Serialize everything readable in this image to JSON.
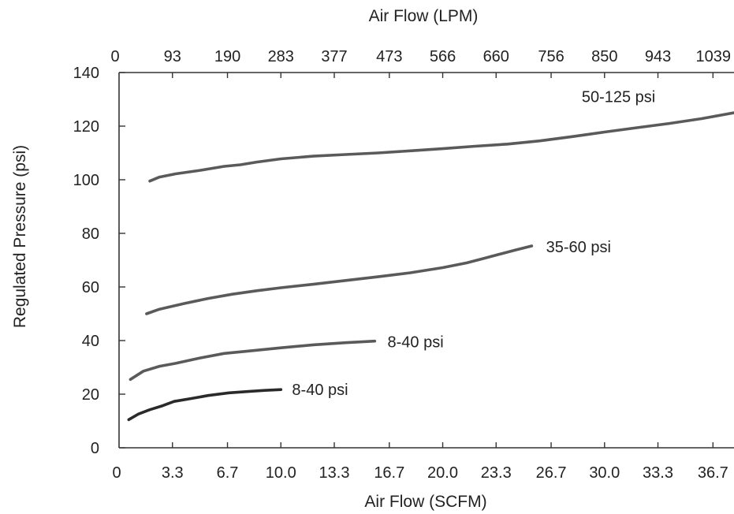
{
  "chart_data": {
    "type": "line",
    "title": "",
    "xlabel": "Air Flow (SCFM)",
    "x2label": "Air Flow (LPM)",
    "ylabel": "Regulated Pressure (psi)",
    "xlim": [
      0,
      38
    ],
    "ylim": [
      0,
      140
    ],
    "grid": false,
    "legend": "none",
    "bottom_ticks": [
      {
        "value": 0,
        "label": "0"
      },
      {
        "value": 3.3,
        "label": "3.3"
      },
      {
        "value": 6.7,
        "label": "6.7"
      },
      {
        "value": 10.0,
        "label": "10.0"
      },
      {
        "value": 13.3,
        "label": "13.3"
      },
      {
        "value": 16.7,
        "label": "16.7"
      },
      {
        "value": 20.0,
        "label": "20.0"
      },
      {
        "value": 23.3,
        "label": "23.3"
      },
      {
        "value": 26.7,
        "label": "26.7"
      },
      {
        "value": 30.0,
        "label": "30.0"
      },
      {
        "value": 33.3,
        "label": "33.3"
      },
      {
        "value": 36.7,
        "label": "36.7"
      }
    ],
    "top_ticks": [
      {
        "value": 0,
        "label": "0"
      },
      {
        "value": 3.3,
        "label": "93"
      },
      {
        "value": 6.7,
        "label": "190"
      },
      {
        "value": 10.0,
        "label": "283"
      },
      {
        "value": 13.3,
        "label": "377"
      },
      {
        "value": 16.7,
        "label": "473"
      },
      {
        "value": 20.0,
        "label": "566"
      },
      {
        "value": 23.3,
        "label": "660"
      },
      {
        "value": 26.7,
        "label": "756"
      },
      {
        "value": 30.0,
        "label": "850"
      },
      {
        "value": 33.3,
        "label": "943"
      },
      {
        "value": 36.7,
        "label": "1039"
      }
    ],
    "y_ticks": [
      0,
      20,
      40,
      60,
      80,
      100,
      120,
      140
    ],
    "series": [
      {
        "name": "50-125 psi",
        "color": "#5a5a5a",
        "x": [
          1.9,
          2.5,
          3.5,
          5.0,
          6.5,
          7.5,
          8.5,
          10.0,
          12.0,
          14.0,
          16.0,
          18.0,
          20.0,
          22.0,
          24.0,
          26.0,
          28.0,
          30.0,
          32.0,
          34.0,
          36.0,
          38.0
        ],
        "y": [
          99.5,
          101,
          102.2,
          103.5,
          105,
          105.6,
          106.6,
          107.8,
          108.8,
          109.4,
          110,
          110.8,
          111.6,
          112.5,
          113.3,
          114.5,
          116.1,
          117.8,
          119.4,
          121,
          122.8,
          125
        ]
      },
      {
        "name": "35-60 psi",
        "color": "#5a5a5a",
        "x": [
          1.7,
          2.5,
          4.0,
          5.5,
          7.0,
          8.5,
          10.0,
          12.0,
          14.0,
          16.0,
          18.0,
          20.0,
          21.5,
          22.5,
          23.5,
          24.5,
          25.5
        ],
        "y": [
          50,
          51.7,
          53.8,
          55.7,
          57.3,
          58.6,
          59.7,
          61,
          62.4,
          63.8,
          65.3,
          67.2,
          69,
          70.6,
          72.2,
          73.8,
          75.3
        ]
      },
      {
        "name": "8-40 psi",
        "color": "#5a5a5a",
        "x": [
          0.7,
          1.5,
          2.5,
          3.5,
          5.0,
          6.5,
          8.0,
          10.0,
          12.0,
          14.0,
          15.8
        ],
        "y": [
          25.5,
          28.6,
          30.4,
          31.5,
          33.5,
          35.2,
          36.1,
          37.3,
          38.4,
          39.2,
          39.8
        ]
      },
      {
        "name": "8-40 psi",
        "color": "#2a2a2a",
        "x": [
          0.6,
          1.2,
          1.9,
          2.7,
          3.4,
          4.5,
          5.5,
          6.8,
          8.0,
          9.0,
          10.0
        ],
        "y": [
          10.5,
          12.6,
          14.2,
          15.7,
          17.3,
          18.4,
          19.5,
          20.5,
          21,
          21.4,
          21.7
        ]
      }
    ],
    "series_label_anchors": [
      {
        "x": 28.2,
        "y": 125.5
      },
      {
        "x": 25.9,
        "y": 75.3
      },
      {
        "x": 16.2,
        "y": 39.6
      },
      {
        "x": 10.3,
        "y": 21.7
      }
    ]
  }
}
